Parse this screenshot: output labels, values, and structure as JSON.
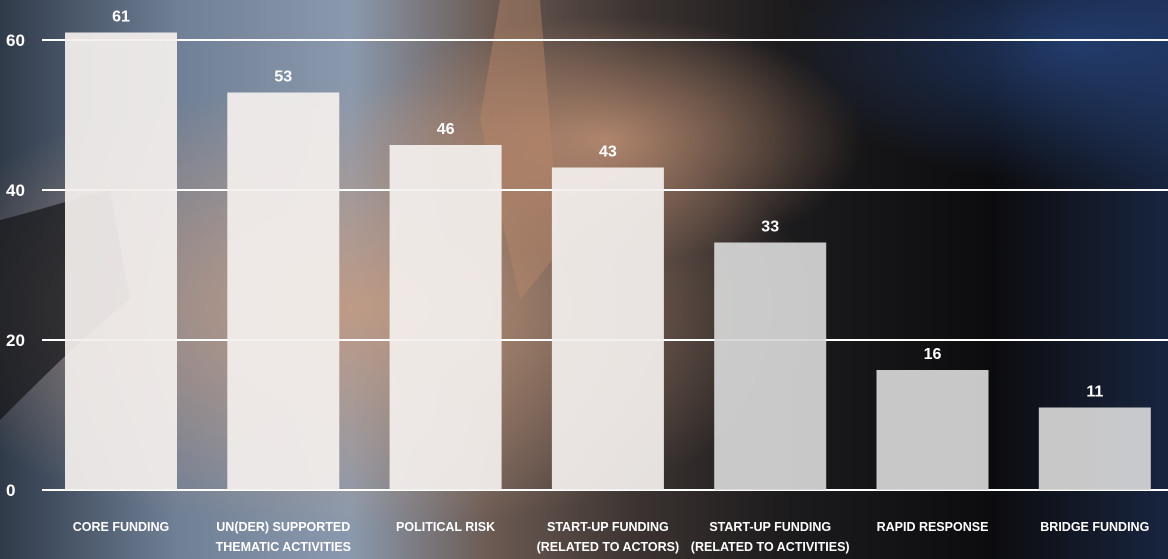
{
  "chart_data": {
    "type": "bar",
    "categories": [
      [
        "CORE FUNDING"
      ],
      [
        "UN(DER) SUPPORTED",
        "THEMATIC ACTIVITIES"
      ],
      [
        "POLITICAL RISK"
      ],
      [
        "START-UP FUNDING",
        "(RELATED TO ACTORS)"
      ],
      [
        "START-UP FUNDING",
        "(RELATED TO ACTIVITIES)"
      ],
      [
        "RAPID RESPONSE"
      ],
      [
        "BRIDGE FUNDING"
      ]
    ],
    "values": [
      61,
      53,
      46,
      43,
      33,
      16,
      11
    ],
    "value_labels": [
      "61",
      "53",
      "46",
      "43",
      "33",
      "16",
      "11"
    ],
    "yticks": [
      0,
      20,
      40,
      60
    ],
    "ytick_labels": [
      "0",
      "20",
      "40",
      "60"
    ],
    "ylim": [
      0,
      60
    ],
    "grid": true,
    "colors": {
      "bar_top": "#f3efed",
      "bar_bottom": "#d6d6d6",
      "grid": "#ffffff",
      "text": "#ffffff"
    }
  }
}
